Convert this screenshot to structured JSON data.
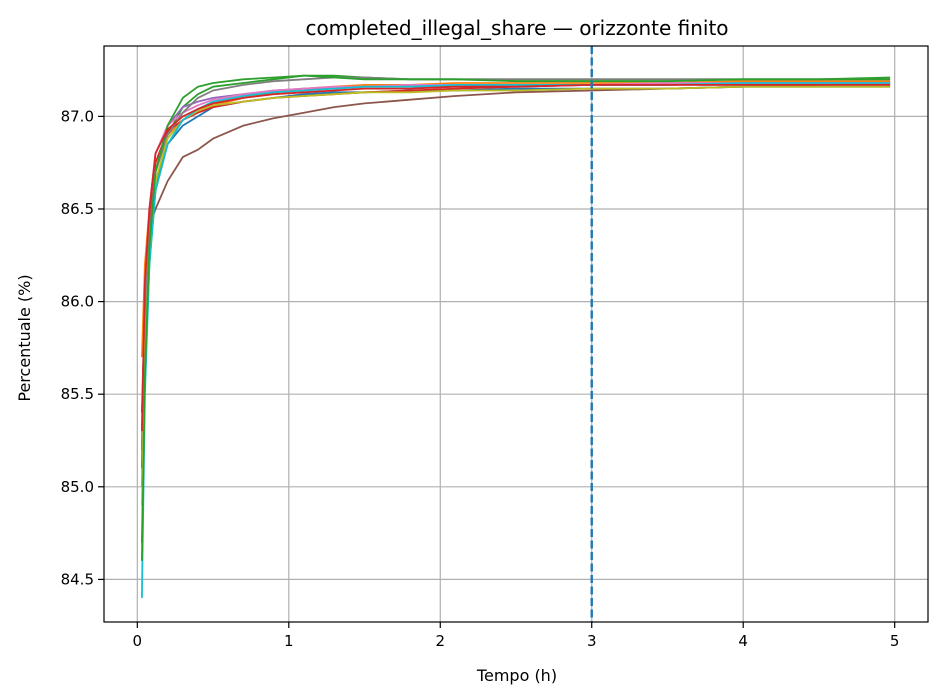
{
  "chart_data": {
    "type": "line",
    "title": "completed_illegal_share — orizzonte finito",
    "xlabel": "Tempo (h)",
    "ylabel": "Percentuale (%)",
    "xlim": [
      -0.22,
      5.22
    ],
    "ylim": [
      84.27,
      87.38
    ],
    "xticks": [
      0,
      1,
      2,
      3,
      4,
      5
    ],
    "xtick_labels": [
      "0",
      "1",
      "2",
      "3",
      "4",
      "5"
    ],
    "yticks": [
      84.5,
      85.0,
      85.5,
      86.0,
      86.5,
      87.0
    ],
    "ytick_labels": [
      "84.5",
      "85.0",
      "85.5",
      "86.0",
      "86.5",
      "87.0"
    ],
    "grid": true,
    "legend": "none",
    "vline": {
      "x": 3,
      "color": "#1f77b4",
      "style": "dashed"
    },
    "x": [
      0.03,
      0.05,
      0.08,
      0.12,
      0.2,
      0.3,
      0.4,
      0.5,
      0.7,
      0.9,
      1.1,
      1.3,
      1.5,
      1.8,
      2.1,
      2.5,
      3.0,
      3.5,
      4.0,
      4.5,
      4.97
    ],
    "series": [
      {
        "color": "#1f77b4",
        "values": [
          85.2,
          85.9,
          86.3,
          86.6,
          86.85,
          86.95,
          87.0,
          87.05,
          87.08,
          87.1,
          87.12,
          87.13,
          87.13,
          87.14,
          87.14,
          87.15,
          87.15,
          87.15,
          87.16,
          87.16,
          87.16
        ]
      },
      {
        "color": "#ff7f0e",
        "values": [
          85.7,
          86.2,
          86.5,
          86.7,
          86.9,
          86.98,
          87.03,
          87.06,
          87.1,
          87.13,
          87.15,
          87.16,
          87.17,
          87.17,
          87.18,
          87.18,
          87.18,
          87.18,
          87.19,
          87.19,
          87.19
        ]
      },
      {
        "color": "#2ca02c",
        "values": [
          84.7,
          85.6,
          86.2,
          86.6,
          86.9,
          87.05,
          87.12,
          87.16,
          87.18,
          87.2,
          87.22,
          87.22,
          87.21,
          87.2,
          87.2,
          87.2,
          87.2,
          87.2,
          87.2,
          87.2,
          87.21
        ]
      },
      {
        "color": "#d62728",
        "values": [
          85.4,
          86.0,
          86.4,
          86.75,
          86.92,
          86.98,
          87.02,
          87.05,
          87.08,
          87.1,
          87.11,
          87.12,
          87.13,
          87.14,
          87.15,
          87.16,
          87.17,
          87.17,
          87.18,
          87.18,
          87.18
        ]
      },
      {
        "color": "#9467bd",
        "values": [
          85.0,
          85.8,
          86.35,
          86.7,
          86.95,
          87.05,
          87.08,
          87.1,
          87.12,
          87.14,
          87.15,
          87.15,
          87.16,
          87.16,
          87.16,
          87.17,
          87.17,
          87.17,
          87.17,
          87.18,
          87.18
        ]
      },
      {
        "color": "#8c564b",
        "values": [
          85.1,
          85.9,
          86.4,
          86.5,
          86.65,
          86.78,
          86.82,
          86.88,
          86.95,
          86.99,
          87.02,
          87.05,
          87.07,
          87.09,
          87.11,
          87.13,
          87.14,
          87.15,
          87.16,
          87.17,
          87.18
        ]
      },
      {
        "color": "#e377c2",
        "values": [
          85.3,
          86.0,
          86.5,
          86.8,
          86.95,
          87.02,
          87.06,
          87.09,
          87.12,
          87.14,
          87.15,
          87.16,
          87.16,
          87.17,
          87.17,
          87.17,
          87.17,
          87.18,
          87.18,
          87.18,
          87.18
        ]
      },
      {
        "color": "#7f7f7f",
        "values": [
          85.2,
          85.9,
          86.35,
          86.7,
          86.9,
          87.02,
          87.1,
          87.14,
          87.17,
          87.19,
          87.2,
          87.21,
          87.21,
          87.2,
          87.2,
          87.2,
          87.2,
          87.2,
          87.2,
          87.2,
          87.2
        ]
      },
      {
        "color": "#bcbd22",
        "values": [
          84.9,
          85.7,
          86.3,
          86.65,
          86.88,
          86.98,
          87.03,
          87.06,
          87.08,
          87.1,
          87.11,
          87.12,
          87.13,
          87.13,
          87.14,
          87.14,
          87.15,
          87.15,
          87.16,
          87.16,
          87.16
        ]
      },
      {
        "color": "#17becf",
        "values": [
          84.4,
          85.5,
          86.2,
          86.6,
          86.85,
          86.98,
          87.04,
          87.08,
          87.11,
          87.13,
          87.14,
          87.15,
          87.16,
          87.16,
          87.17,
          87.17,
          87.17,
          87.17,
          87.18,
          87.18,
          87.18
        ]
      },
      {
        "color": "#2ca02c",
        "values": [
          84.6,
          85.6,
          86.3,
          86.7,
          86.95,
          87.1,
          87.16,
          87.18,
          87.2,
          87.21,
          87.22,
          87.21,
          87.2,
          87.2,
          87.2,
          87.19,
          87.19,
          87.19,
          87.2,
          87.2,
          87.2
        ]
      },
      {
        "color": "#d62728",
        "values": [
          85.3,
          86.1,
          86.5,
          86.8,
          86.93,
          87.0,
          87.04,
          87.07,
          87.1,
          87.12,
          87.13,
          87.14,
          87.15,
          87.15,
          87.16,
          87.16,
          87.17,
          87.17,
          87.17,
          87.17,
          87.17
        ]
      }
    ]
  }
}
